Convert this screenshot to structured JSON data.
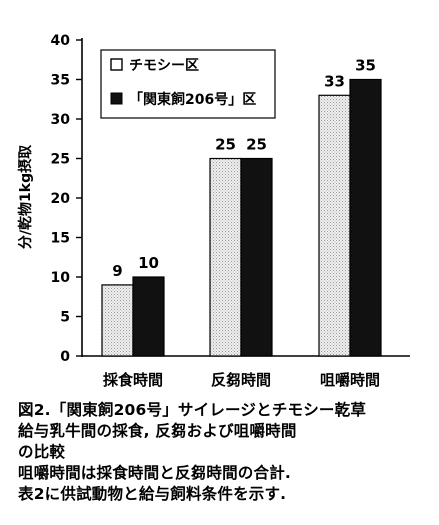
{
  "chart_data": {
    "type": "bar",
    "categories": [
      "採食時間",
      "反芻時間",
      "咀嚼時間"
    ],
    "series": [
      {
        "name": "チモシー区",
        "values": [
          9,
          25,
          33
        ],
        "color": "#e8e8e8",
        "pattern": "light-stipple"
      },
      {
        "name": "「関東飼206号」区",
        "values": [
          10,
          25,
          35
        ],
        "color": "#111111",
        "pattern": "solid-dark"
      }
    ],
    "value_labels": [
      [
        "9",
        "25",
        "33"
      ],
      [
        "10",
        "25",
        "35"
      ]
    ],
    "ylabel": "分/乾物1kg摂取",
    "xlabel": "",
    "ylim": [
      0,
      40
    ],
    "yticks": [
      0,
      5,
      10,
      15,
      20,
      25,
      30,
      35,
      40
    ],
    "grid": false,
    "legend_position": "top-left"
  },
  "caption": {
    "lines": [
      "図2.「関東飼206号」サイレージとチモシー乾草",
      "給与乳牛間の採食, 反芻および咀嚼時間",
      "の比較",
      "咀嚼時間は採食時間と反芻時間の合計.",
      "表2に供試動物と給与飼料条件を示す."
    ]
  }
}
